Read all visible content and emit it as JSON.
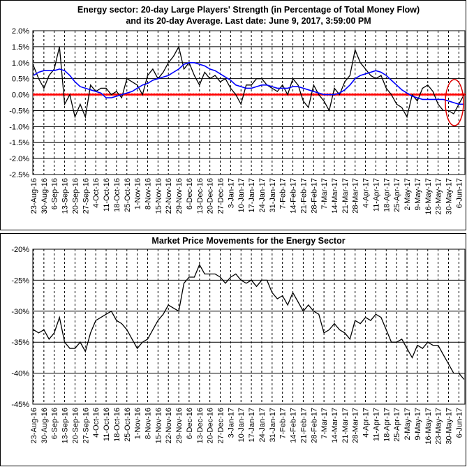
{
  "chart_data": [
    {
      "type": "line",
      "title": [
        "Energy sector: 20-day Large Players' Strength (in Percentage of Total Money Flow)",
        "and its 20-day Average. Last date: June 9, 2017, 3:59:00 PM"
      ],
      "categories": [
        "23-Aug-16",
        null,
        "30-Aug-16",
        null,
        "6-Sep-16",
        null,
        "13-Sep-16",
        null,
        "20-Sep-16",
        null,
        "27-Sep-16",
        null,
        "4-Oct-16",
        null,
        "11-Oct-16",
        null,
        "18-Oct-16",
        null,
        "25-Oct-16",
        null,
        "1-Nov-16",
        null,
        "8-Nov-16",
        null,
        "15-Nov-16",
        null,
        "22-Nov-16",
        null,
        "29-Nov-16",
        null,
        "6-Dec-16",
        null,
        "13-Dec-16",
        null,
        "20-Dec-16",
        null,
        "27-Dec-16",
        null,
        "3-Jan-17",
        null,
        "10-Jan-17",
        null,
        "17-Jan-17",
        null,
        "24-Jan-17",
        null,
        "31-Jan-17",
        null,
        "7-Feb-17",
        null,
        "14-Feb-17",
        null,
        "21-Feb-17",
        null,
        "28-Feb-17",
        null,
        "7-Mar-17",
        null,
        "14-Mar-17",
        null,
        "21-Mar-17",
        null,
        "28-Mar-17",
        null,
        "4-Apr-17",
        null,
        "11-Apr-17",
        null,
        "18-Apr-17",
        null,
        "25-Apr-17",
        null,
        "2-May-17",
        null,
        "9-May-17",
        null,
        "16-May-17",
        null,
        "23-May-17",
        null,
        "30-May-17",
        null,
        "6-Jun-17",
        null
      ],
      "series": [
        {
          "color": "#000000",
          "values": [
            0.9,
            0.5,
            0.2,
            0.6,
            0.8,
            1.5,
            -0.3,
            0.0,
            -0.7,
            -0.3,
            -0.7,
            0.3,
            0.1,
            0.2,
            0.2,
            0.0,
            0.1,
            -0.1,
            0.5,
            0.4,
            0.3,
            0.0,
            0.6,
            0.8,
            0.5,
            0.7,
            1.0,
            1.2,
            1.5,
            0.8,
            1.0,
            0.6,
            0.3,
            0.7,
            0.5,
            0.6,
            0.4,
            0.5,
            0.2,
            0.0,
            -0.3,
            0.3,
            0.3,
            0.5,
            0.5,
            0.3,
            0.2,
            0.1,
            0.3,
            0.0,
            0.5,
            0.3,
            -0.2,
            -0.4,
            0.3,
            0.0,
            -0.2,
            -0.5,
            0.2,
            0.0,
            0.4,
            0.6,
            1.4,
            1.0,
            0.8,
            0.6,
            0.5,
            0.6,
            0.2,
            0.0,
            -0.3,
            -0.4,
            -0.7,
            0.0,
            -0.2,
            0.2,
            0.3,
            0.1,
            -0.3,
            -0.5,
            -0.5,
            -0.6,
            -0.3,
            0.0
          ]
        },
        {
          "color": "#0000ff",
          "values": [
            0.6,
            0.7,
            0.75,
            0.75,
            0.75,
            0.8,
            0.75,
            0.6,
            0.4,
            0.25,
            0.2,
            0.15,
            0.1,
            0.05,
            -0.1,
            -0.1,
            -0.05,
            0.0,
            0.05,
            0.1,
            0.2,
            0.3,
            0.35,
            0.45,
            0.5,
            0.55,
            0.6,
            0.7,
            0.8,
            0.95,
            1.0,
            1.0,
            0.95,
            0.9,
            0.8,
            0.75,
            0.65,
            0.55,
            0.45,
            0.3,
            0.25,
            0.2,
            0.2,
            0.25,
            0.3,
            0.3,
            0.25,
            0.2,
            0.2,
            0.2,
            0.25,
            0.25,
            0.2,
            0.15,
            0.1,
            0.05,
            0.0,
            0.0,
            0.0,
            0.05,
            0.15,
            0.3,
            0.5,
            0.6,
            0.65,
            0.7,
            0.75,
            0.7,
            0.6,
            0.45,
            0.3,
            0.15,
            0.05,
            -0.05,
            -0.1,
            -0.15,
            -0.15,
            -0.15,
            -0.15,
            -0.15,
            -0.2,
            -0.25,
            -0.3,
            -0.3
          ]
        }
      ],
      "reference_line": {
        "value": 0,
        "color": "#ff0000"
      },
      "ylim": [
        -2.5,
        2.0
      ],
      "yticks": [
        {
          "value": 2.0,
          "label": "2.0%"
        },
        {
          "value": 1.5,
          "label": "1.5%"
        },
        {
          "value": 1.0,
          "label": "1.0%"
        },
        {
          "value": 0.5,
          "label": "0.5%"
        },
        {
          "value": 0.0,
          "label": "0.0%"
        },
        {
          "value": -0.5,
          "label": "-0.5%"
        },
        {
          "value": -1.0,
          "label": "-1.0%"
        },
        {
          "value": -1.5,
          "label": "-1.5%"
        },
        {
          "value": -2.0,
          "label": "-2.0%"
        },
        {
          "value": -2.5,
          "label": "-2.5%"
        }
      ],
      "grid": true
    },
    {
      "type": "line",
      "title": [
        "Market Price Movements for the Energy Sector"
      ],
      "categories": [
        "23-Aug-16",
        null,
        "30-Aug-16",
        null,
        "6-Sep-16",
        null,
        "13-Sep-16",
        null,
        "20-Sep-16",
        null,
        "27-Sep-16",
        null,
        "4-Oct-16",
        null,
        "11-Oct-16",
        null,
        "18-Oct-16",
        null,
        "25-Oct-16",
        null,
        "1-Nov-16",
        null,
        "8-Nov-16",
        null,
        "15-Nov-16",
        null,
        "22-Nov-16",
        null,
        "29-Nov-16",
        null,
        "6-Dec-16",
        null,
        "13-Dec-16",
        null,
        "20-Dec-16",
        null,
        "27-Dec-16",
        null,
        "3-Jan-17",
        null,
        "10-Jan-17",
        null,
        "17-Jan-17",
        null,
        "24-Jan-17",
        null,
        "31-Jan-17",
        null,
        "7-Feb-17",
        null,
        "14-Feb-17",
        null,
        "21-Feb-17",
        null,
        "28-Feb-17",
        null,
        "7-Mar-17",
        null,
        "14-Mar-17",
        null,
        "21-Mar-17",
        null,
        "28-Mar-17",
        null,
        "4-Apr-17",
        null,
        "11-Apr-17",
        null,
        "18-Apr-17",
        null,
        "25-Apr-17",
        null,
        "2-May-17",
        null,
        "9-May-17",
        null,
        "16-May-17",
        null,
        "23-May-17",
        null,
        "30-May-17",
        null,
        "6-Jun-17",
        null
      ],
      "series": [
        {
          "color": "#000000",
          "values": [
            -33,
            -33.5,
            -33,
            -34.5,
            -33.5,
            -31,
            -35,
            -36,
            -36,
            -35,
            -36.5,
            -33.5,
            -31.5,
            -31,
            -30.5,
            -30,
            -31.5,
            -32,
            -33,
            -34.5,
            -36,
            -35,
            -34.5,
            -33,
            -31.5,
            -30.5,
            -29,
            -29.5,
            -30,
            -25.5,
            -24.5,
            -24.5,
            -22.5,
            -24,
            -24,
            -24,
            -24.5,
            -25.5,
            -24.5,
            -24,
            -25,
            -25.5,
            -25,
            -26,
            -25,
            -25,
            -27,
            -28,
            -27.5,
            -29,
            -27,
            -28.5,
            -30,
            -29,
            -30,
            -30.5,
            -33.5,
            -33,
            -32,
            -33,
            -33.5,
            -34.5,
            -31.5,
            -32,
            -31,
            -31.5,
            -30.5,
            -31,
            -33,
            -35,
            -35,
            -34.5,
            -36,
            -37.5,
            -35.5,
            -36,
            -35,
            -35.5,
            -35.5,
            -37,
            -38.5,
            -40,
            -40,
            -41
          ]
        }
      ],
      "ylim": [
        -45,
        -20
      ],
      "yticks": [
        {
          "value": -20,
          "label": "-20%"
        },
        {
          "value": -25,
          "label": "-25%"
        },
        {
          "value": -30,
          "label": "-30%"
        },
        {
          "value": -35,
          "label": "-35%"
        },
        {
          "value": -40,
          "label": "-40%"
        },
        {
          "value": -45,
          "label": "-45%"
        }
      ],
      "grid": true
    }
  ]
}
